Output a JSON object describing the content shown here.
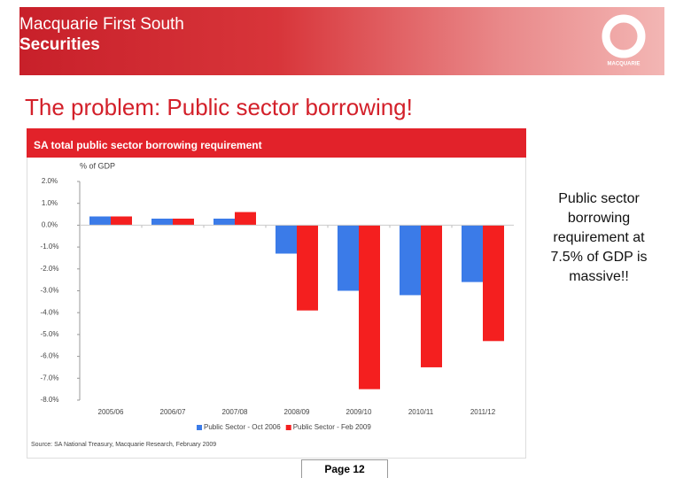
{
  "header": {
    "line1": "Macquarie First South",
    "line2": "Securities",
    "logo": "MACQUARIE"
  },
  "slide_title": "The problem:  Public sector borrowing!",
  "annotation": "Public sector borrowing requirement at 7.5% of GDP is massive!!",
  "page": "Page 12",
  "chart_data": {
    "type": "bar",
    "title": "SA total public sector borrowing requirement",
    "ylabel": "% of GDP",
    "source": "Source: SA National Treasury, Macquarie Research, February 2009",
    "categories": [
      "2005/06",
      "2006/07",
      "2007/08",
      "2008/09",
      "2009/10",
      "2010/11",
      "2011/12"
    ],
    "series": [
      {
        "name": "Public Sector - Oct 2006",
        "color": "#3b7be8",
        "values": [
          0.4,
          0.3,
          0.3,
          -1.3,
          -3.0,
          -3.2,
          -2.6
        ]
      },
      {
        "name": "Public Sector - Feb 2009",
        "color": "#f41f1f",
        "values": [
          0.4,
          0.3,
          0.6,
          -3.9,
          -7.5,
          -6.5,
          -5.3
        ]
      }
    ],
    "ylim": [
      -8,
      2
    ],
    "yticks": [
      {
        "value": 2,
        "label": "2.0%"
      },
      {
        "value": 1,
        "label": "1.0%"
      },
      {
        "value": 0,
        "label": "0.0%"
      },
      {
        "value": -1,
        "label": "-1.0%"
      },
      {
        "value": -2,
        "label": "-2.0%"
      },
      {
        "value": -3,
        "label": "-3.0%"
      },
      {
        "value": -4,
        "label": "-4.0%"
      },
      {
        "value": -5,
        "label": "-5.0%"
      },
      {
        "value": -6,
        "label": "-6.0%"
      },
      {
        "value": -7,
        "label": "-7.0%"
      },
      {
        "value": -8,
        "label": "-8.0%"
      }
    ],
    "legend": "bottom"
  }
}
